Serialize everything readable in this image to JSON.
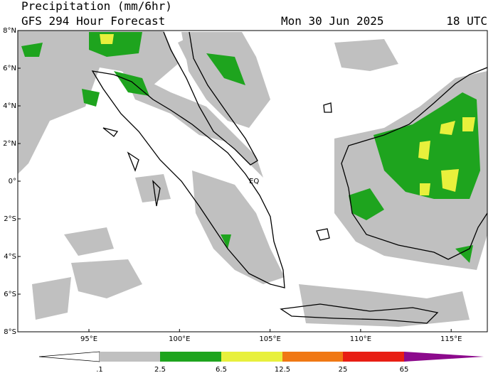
{
  "header": {
    "title": "Precipitation (mm/6hr)",
    "subtitle": "GFS 294 Hour Forecast",
    "date": "Mon 30 Jun 2025",
    "time": "18 UTC"
  },
  "map": {
    "lat_labels": [
      "8°N",
      "6°N",
      "4°N",
      "2°N",
      "0°",
      "2°S",
      "4°S",
      "6°S",
      "8°S"
    ],
    "lon_labels": [
      "95°E",
      "100°E",
      "105°E",
      "110°E",
      "115°E"
    ],
    "eq_label": "EQ"
  },
  "colorbar": {
    "labels": [
      ".1",
      "2.5",
      "6.5",
      "12.5",
      "25",
      "65"
    ]
  }
}
